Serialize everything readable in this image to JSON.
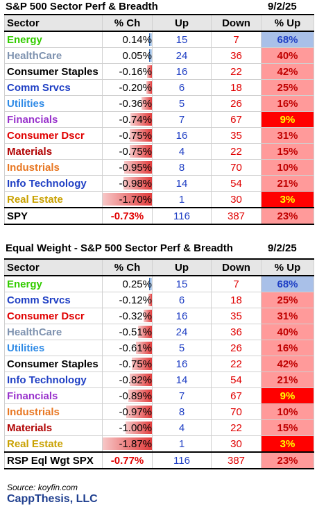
{
  "table1": {
    "title": "S&P 500 Sector Perf & Breadth",
    "date": "9/2/25",
    "headers": {
      "sector": "Sector",
      "ch": "% Ch",
      "up": "Up",
      "down": "Down",
      "pct": "% Up"
    },
    "rows": [
      {
        "sector": "Energy",
        "color": "#33cc00",
        "ch": "0.14%",
        "ch_value": 0.14,
        "up": "15",
        "down": "7",
        "pct": "68%",
        "pct_style": "blue"
      },
      {
        "sector": "HealthCare",
        "color": "#7f93b0",
        "ch": "0.05%",
        "ch_value": 0.05,
        "up": "24",
        "down": "36",
        "pct": "40%",
        "pct_style": "pink"
      },
      {
        "sector": "Consumer Staples",
        "color": "#000000",
        "ch": "-0.16%",
        "ch_value": -0.16,
        "up": "16",
        "down": "22",
        "pct": "42%",
        "pct_style": "pink"
      },
      {
        "sector": "Comm Srvcs",
        "color": "#1f3fc4",
        "ch": "-0.20%",
        "ch_value": -0.2,
        "up": "6",
        "down": "18",
        "pct": "25%",
        "pct_style": "pink"
      },
      {
        "sector": "Utilities",
        "color": "#2e8ae6",
        "ch": "-0.36%",
        "ch_value": -0.36,
        "up": "5",
        "down": "26",
        "pct": "16%",
        "pct_style": "pink"
      },
      {
        "sector": "Financials",
        "color": "#9933cc",
        "ch": "-0.74%",
        "ch_value": -0.74,
        "up": "7",
        "down": "67",
        "pct": "9%",
        "pct_style": "red"
      },
      {
        "sector": "Consumer Dscr",
        "color": "#e00000",
        "ch": "-0.75%",
        "ch_value": -0.75,
        "up": "16",
        "down": "35",
        "pct": "31%",
        "pct_style": "pink"
      },
      {
        "sector": "Materials",
        "color": "#b00000",
        "ch": "-0.75%",
        "ch_value": -0.75,
        "up": "4",
        "down": "22",
        "pct": "15%",
        "pct_style": "pink"
      },
      {
        "sector": "Industrials",
        "color": "#e87722",
        "ch": "-0.95%",
        "ch_value": -0.95,
        "up": "8",
        "down": "70",
        "pct": "10%",
        "pct_style": "pink"
      },
      {
        "sector": "Info Technology",
        "color": "#1f3fc4",
        "ch": "-0.98%",
        "ch_value": -0.98,
        "up": "14",
        "down": "54",
        "pct": "21%",
        "pct_style": "pink"
      },
      {
        "sector": "Real Estate",
        "color": "#c9a100",
        "ch": "-1.70%",
        "ch_value": -1.7,
        "up": "1",
        "down": "30",
        "pct": "3%",
        "pct_style": "red"
      }
    ],
    "total": {
      "sector": "SPY",
      "ch": "-0.73%",
      "up": "116",
      "down": "387",
      "pct": "23%"
    }
  },
  "table2": {
    "title": "Equal Weight - S&P 500 Sector Perf & Breadth",
    "date": "9/2/25",
    "headers": {
      "sector": "Sector",
      "ch": "% Ch",
      "up": "Up",
      "down": "Down",
      "pct": "% Up"
    },
    "rows": [
      {
        "sector": "Energy",
        "color": "#33cc00",
        "ch": "0.25%",
        "ch_value": 0.25,
        "up": "15",
        "down": "7",
        "pct": "68%",
        "pct_style": "blue"
      },
      {
        "sector": "Comm Srvcs",
        "color": "#1f3fc4",
        "ch": "-0.12%",
        "ch_value": -0.12,
        "up": "6",
        "down": "18",
        "pct": "25%",
        "pct_style": "pink"
      },
      {
        "sector": "Consumer Dscr",
        "color": "#e00000",
        "ch": "-0.32%",
        "ch_value": -0.32,
        "up": "16",
        "down": "35",
        "pct": "31%",
        "pct_style": "pink"
      },
      {
        "sector": "HealthCare",
        "color": "#7f93b0",
        "ch": "-0.51%",
        "ch_value": -0.51,
        "up": "24",
        "down": "36",
        "pct": "40%",
        "pct_style": "pink"
      },
      {
        "sector": "Utilities",
        "color": "#2e8ae6",
        "ch": "-0.61%",
        "ch_value": -0.61,
        "up": "5",
        "down": "26",
        "pct": "16%",
        "pct_style": "pink"
      },
      {
        "sector": "Consumer Staples",
        "color": "#000000",
        "ch": "-0.75%",
        "ch_value": -0.75,
        "up": "16",
        "down": "22",
        "pct": "42%",
        "pct_style": "pink"
      },
      {
        "sector": "Info Technology",
        "color": "#1f3fc4",
        "ch": "-0.82%",
        "ch_value": -0.82,
        "up": "14",
        "down": "54",
        "pct": "21%",
        "pct_style": "pink"
      },
      {
        "sector": "Financials",
        "color": "#9933cc",
        "ch": "-0.89%",
        "ch_value": -0.89,
        "up": "7",
        "down": "67",
        "pct": "9%",
        "pct_style": "red"
      },
      {
        "sector": "Industrials",
        "color": "#e87722",
        "ch": "-0.97%",
        "ch_value": -0.97,
        "up": "8",
        "down": "70",
        "pct": "10%",
        "pct_style": "pink"
      },
      {
        "sector": "Materials",
        "color": "#b00000",
        "ch": "-1.00%",
        "ch_value": -1.0,
        "up": "4",
        "down": "22",
        "pct": "15%",
        "pct_style": "pink"
      },
      {
        "sector": "Real Estate",
        "color": "#c9a100",
        "ch": "-1.87%",
        "ch_value": -1.87,
        "up": "1",
        "down": "30",
        "pct": "3%",
        "pct_style": "red"
      }
    ],
    "total": {
      "sector": "RSP Eql Wgt SPX",
      "ch": "-0.77%",
      "up": "116",
      "down": "387",
      "pct": "23%"
    }
  },
  "footer": {
    "source": "Source: koyfin.com",
    "brand": "CappThesis, LLC"
  }
}
